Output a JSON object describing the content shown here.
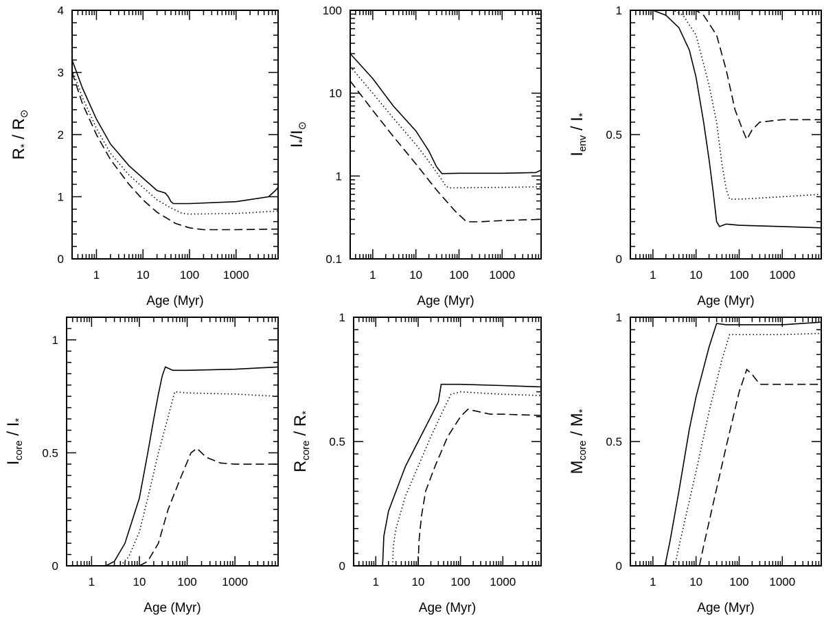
{
  "chart_data": [
    {
      "type": "line",
      "xscale": "log",
      "yscale": "linear",
      "xlim": [
        0.3,
        8000
      ],
      "ylim": [
        0,
        4
      ],
      "xticks": [
        1,
        10,
        100,
        1000
      ],
      "xtick_labels": [
        "1",
        "10",
        "100",
        "1000"
      ],
      "yticks": [
        0,
        1,
        2,
        3,
        4
      ],
      "ytick_labels": [
        "0",
        "1",
        "2",
        "3",
        "4"
      ],
      "xlabel": "Age (Myr)",
      "ylabel": {
        "num": "R",
        "num_sub": "*",
        "den": "R",
        "den_sub": "⊙"
      },
      "series": [
        {
          "style": "solid",
          "points": [
            [
              0.3,
              3.2
            ],
            [
              0.5,
              2.75
            ],
            [
              1,
              2.25
            ],
            [
              2,
              1.85
            ],
            [
              5,
              1.5
            ],
            [
              10,
              1.3
            ],
            [
              20,
              1.1
            ],
            [
              30,
              1.06
            ],
            [
              35,
              1.0
            ],
            [
              40,
              0.92
            ],
            [
              45,
              0.89
            ],
            [
              100,
              0.89
            ],
            [
              1000,
              0.92
            ],
            [
              5000,
              1.0
            ],
            [
              7000,
              1.1
            ],
            [
              8000,
              1.15
            ]
          ]
        },
        {
          "style": "dotted",
          "points": [
            [
              0.3,
              3.05
            ],
            [
              0.5,
              2.6
            ],
            [
              1,
              2.1
            ],
            [
              2,
              1.7
            ],
            [
              5,
              1.35
            ],
            [
              10,
              1.15
            ],
            [
              20,
              0.95
            ],
            [
              40,
              0.82
            ],
            [
              70,
              0.73
            ],
            [
              100,
              0.72
            ],
            [
              1000,
              0.73
            ],
            [
              8000,
              0.77
            ]
          ]
        },
        {
          "style": "dashed",
          "points": [
            [
              0.3,
              3.0
            ],
            [
              0.5,
              2.5
            ],
            [
              1,
              2.0
            ],
            [
              2,
              1.6
            ],
            [
              5,
              1.2
            ],
            [
              10,
              0.95
            ],
            [
              20,
              0.75
            ],
            [
              50,
              0.57
            ],
            [
              100,
              0.5
            ],
            [
              200,
              0.47
            ],
            [
              1000,
              0.47
            ],
            [
              8000,
              0.48
            ]
          ]
        }
      ]
    },
    {
      "type": "line",
      "xscale": "log",
      "yscale": "log",
      "xlim": [
        0.3,
        8000
      ],
      "ylim": [
        0.1,
        100
      ],
      "xticks": [
        1,
        10,
        100,
        1000
      ],
      "xtick_labels": [
        "1",
        "10",
        "100",
        "1000"
      ],
      "yticks": [
        0.1,
        1,
        10,
        100
      ],
      "ytick_labels": [
        "0.1",
        "1",
        "10",
        "100"
      ],
      "xlabel": "Age (Myr)",
      "ylabel": {
        "num": "I",
        "num_sub": "*",
        "sep": "/",
        "den": "I",
        "den_sub": "⊙"
      },
      "series": [
        {
          "style": "solid",
          "points": [
            [
              0.3,
              30
            ],
            [
              1,
              15
            ],
            [
              3,
              7
            ],
            [
              10,
              3.5
            ],
            [
              20,
              2
            ],
            [
              30,
              1.3
            ],
            [
              40,
              1.07
            ],
            [
              100,
              1.08
            ],
            [
              1000,
              1.08
            ],
            [
              6000,
              1.1
            ],
            [
              8000,
              1.18
            ]
          ]
        },
        {
          "style": "dotted",
          "points": [
            [
              0.3,
              21
            ],
            [
              1,
              10
            ],
            [
              3,
              5
            ],
            [
              10,
              2.4
            ],
            [
              20,
              1.5
            ],
            [
              40,
              0.9
            ],
            [
              50,
              0.75
            ],
            [
              60,
              0.72
            ],
            [
              100,
              0.72
            ],
            [
              1000,
              0.73
            ],
            [
              8000,
              0.74
            ]
          ]
        },
        {
          "style": "dashed",
          "points": [
            [
              0.3,
              14
            ],
            [
              1,
              6.2
            ],
            [
              3,
              3
            ],
            [
              10,
              1.4
            ],
            [
              30,
              0.68
            ],
            [
              80,
              0.38
            ],
            [
              150,
              0.28
            ],
            [
              300,
              0.28
            ],
            [
              1000,
              0.29
            ],
            [
              8000,
              0.3
            ]
          ]
        }
      ]
    },
    {
      "type": "line",
      "xscale": "log",
      "yscale": "linear",
      "xlim": [
        0.3,
        8000
      ],
      "ylim": [
        0,
        1
      ],
      "xticks": [
        1,
        10,
        100,
        1000
      ],
      "xtick_labels": [
        "1",
        "10",
        "100",
        "1000"
      ],
      "yticks": [
        0,
        0.5,
        1
      ],
      "ytick_labels": [
        "0",
        "0.5",
        "1"
      ],
      "xlabel": "Age (Myr)",
      "ylabel": {
        "num": "I",
        "num_sub": "env",
        "den": "I",
        "den_sub": "*"
      },
      "series": [
        {
          "style": "solid",
          "points": [
            [
              0.3,
              1.0
            ],
            [
              1,
              1.0
            ],
            [
              2,
              0.98
            ],
            [
              4,
              0.93
            ],
            [
              7,
              0.84
            ],
            [
              10,
              0.73
            ],
            [
              15,
              0.55
            ],
            [
              20,
              0.4
            ],
            [
              25,
              0.27
            ],
            [
              30,
              0.15
            ],
            [
              35,
              0.13
            ],
            [
              50,
              0.14
            ],
            [
              100,
              0.135
            ],
            [
              1000,
              0.13
            ],
            [
              8000,
              0.125
            ]
          ]
        },
        {
          "style": "dotted",
          "points": [
            [
              0.3,
              1.0
            ],
            [
              3,
              1.0
            ],
            [
              5,
              0.98
            ],
            [
              10,
              0.9
            ],
            [
              20,
              0.7
            ],
            [
              30,
              0.55
            ],
            [
              40,
              0.38
            ],
            [
              50,
              0.28
            ],
            [
              60,
              0.24
            ],
            [
              100,
              0.24
            ],
            [
              1000,
              0.25
            ],
            [
              8000,
              0.26
            ]
          ]
        },
        {
          "style": "dashed",
          "points": [
            [
              0.3,
              1.0
            ],
            [
              10,
              1.0
            ],
            [
              15,
              0.98
            ],
            [
              30,
              0.9
            ],
            [
              50,
              0.76
            ],
            [
              80,
              0.6
            ],
            [
              120,
              0.52
            ],
            [
              150,
              0.48
            ],
            [
              200,
              0.52
            ],
            [
              300,
              0.55
            ],
            [
              1000,
              0.56
            ],
            [
              8000,
              0.56
            ]
          ]
        }
      ]
    },
    {
      "type": "line",
      "xscale": "log",
      "yscale": "linear",
      "xlim": [
        0.3,
        8000
      ],
      "ylim": [
        0,
        1.1
      ],
      "xticks": [
        1,
        10,
        100,
        1000
      ],
      "xtick_labels": [
        "1",
        "10",
        "100",
        "1000"
      ],
      "yticks": [
        0,
        0.5,
        1
      ],
      "ytick_labels": [
        "0",
        "0.5",
        "1"
      ],
      "xlabel": "Age (Myr)",
      "ylabel": {
        "num": "I",
        "num_sub": "core",
        "den": "I",
        "den_sub": "*"
      },
      "series": [
        {
          "style": "solid",
          "points": [
            [
              2,
              0
            ],
            [
              3,
              0.02
            ],
            [
              5,
              0.1
            ],
            [
              10,
              0.3
            ],
            [
              15,
              0.5
            ],
            [
              20,
              0.65
            ],
            [
              25,
              0.76
            ],
            [
              30,
              0.84
            ],
            [
              35,
              0.88
            ],
            [
              50,
              0.865
            ],
            [
              100,
              0.865
            ],
            [
              1000,
              0.87
            ],
            [
              8000,
              0.88
            ]
          ]
        },
        {
          "style": "dotted",
          "points": [
            [
              4,
              0
            ],
            [
              6,
              0.04
            ],
            [
              10,
              0.15
            ],
            [
              15,
              0.3
            ],
            [
              25,
              0.5
            ],
            [
              40,
              0.66
            ],
            [
              55,
              0.77
            ],
            [
              100,
              0.765
            ],
            [
              1000,
              0.76
            ],
            [
              8000,
              0.75
            ]
          ]
        },
        {
          "style": "dashed",
          "points": [
            [
              10,
              0
            ],
            [
              15,
              0.02
            ],
            [
              25,
              0.1
            ],
            [
              40,
              0.25
            ],
            [
              70,
              0.38
            ],
            [
              120,
              0.5
            ],
            [
              160,
              0.52
            ],
            [
              250,
              0.48
            ],
            [
              500,
              0.455
            ],
            [
              1000,
              0.45
            ],
            [
              8000,
              0.45
            ]
          ]
        }
      ]
    },
    {
      "type": "line",
      "xscale": "log",
      "yscale": "linear",
      "xlim": [
        0.3,
        8000
      ],
      "ylim": [
        0,
        1
      ],
      "xticks": [
        1,
        10,
        100,
        1000
      ],
      "xtick_labels": [
        "1",
        "10",
        "100",
        "1000"
      ],
      "yticks": [
        0,
        0.5,
        1
      ],
      "ytick_labels": [
        "0",
        "0.5",
        "1"
      ],
      "xlabel": "Age (Myr)",
      "ylabel": {
        "num": "R",
        "num_sub": "core",
        "den": "R",
        "den_sub": "*"
      },
      "series": [
        {
          "style": "solid",
          "points": [
            [
              1.45,
              0
            ],
            [
              1.55,
              0.12
            ],
            [
              2,
              0.22
            ],
            [
              3,
              0.3
            ],
            [
              5,
              0.4
            ],
            [
              10,
              0.5
            ],
            [
              20,
              0.6
            ],
            [
              30,
              0.66
            ],
            [
              35,
              0.73
            ],
            [
              100,
              0.73
            ],
            [
              1000,
              0.725
            ],
            [
              8000,
              0.72
            ]
          ]
        },
        {
          "style": "dotted",
          "points": [
            [
              2.5,
              0
            ],
            [
              2.6,
              0.08
            ],
            [
              3,
              0.15
            ],
            [
              5,
              0.28
            ],
            [
              10,
              0.4
            ],
            [
              20,
              0.52
            ],
            [
              40,
              0.63
            ],
            [
              60,
              0.69
            ],
            [
              100,
              0.7
            ],
            [
              1000,
              0.69
            ],
            [
              8000,
              0.685
            ]
          ]
        },
        {
          "style": "dashed",
          "points": [
            [
              10,
              0
            ],
            [
              10.5,
              0.1
            ],
            [
              12,
              0.2
            ],
            [
              15,
              0.3
            ],
            [
              25,
              0.4
            ],
            [
              50,
              0.52
            ],
            [
              100,
              0.6
            ],
            [
              150,
              0.63
            ],
            [
              200,
              0.625
            ],
            [
              500,
              0.61
            ],
            [
              1000,
              0.61
            ],
            [
              8000,
              0.605
            ]
          ]
        }
      ]
    },
    {
      "type": "line",
      "xscale": "log",
      "yscale": "linear",
      "xlim": [
        0.3,
        8000
      ],
      "ylim": [
        0,
        1
      ],
      "xticks": [
        1,
        10,
        100,
        1000
      ],
      "xtick_labels": [
        "1",
        "10",
        "100",
        "1000"
      ],
      "yticks": [
        0,
        0.5,
        1
      ],
      "ytick_labels": [
        "0",
        "0.5",
        "1"
      ],
      "xlabel": "Age (Myr)",
      "ylabel": {
        "num": "M",
        "num_sub": "core",
        "den": "M",
        "den_sub": "*"
      },
      "series": [
        {
          "style": "solid",
          "points": [
            [
              1.9,
              0
            ],
            [
              2.5,
              0.1
            ],
            [
              4,
              0.3
            ],
            [
              7,
              0.55
            ],
            [
              10,
              0.68
            ],
            [
              20,
              0.88
            ],
            [
              30,
              0.975
            ],
            [
              50,
              0.97
            ],
            [
              100,
              0.97
            ],
            [
              1000,
              0.97
            ],
            [
              8000,
              0.98
            ]
          ]
        },
        {
          "style": "dotted",
          "points": [
            [
              3.2,
              0
            ],
            [
              5,
              0.15
            ],
            [
              10,
              0.38
            ],
            [
              20,
              0.62
            ],
            [
              40,
              0.83
            ],
            [
              60,
              0.93
            ],
            [
              100,
              0.93
            ],
            [
              1000,
              0.93
            ],
            [
              8000,
              0.935
            ]
          ]
        },
        {
          "style": "dashed",
          "points": [
            [
              12,
              0
            ],
            [
              15,
              0.08
            ],
            [
              25,
              0.25
            ],
            [
              50,
              0.48
            ],
            [
              100,
              0.7
            ],
            [
              150,
              0.79
            ],
            [
              200,
              0.77
            ],
            [
              300,
              0.73
            ],
            [
              1000,
              0.73
            ],
            [
              8000,
              0.73
            ]
          ]
        }
      ]
    }
  ]
}
